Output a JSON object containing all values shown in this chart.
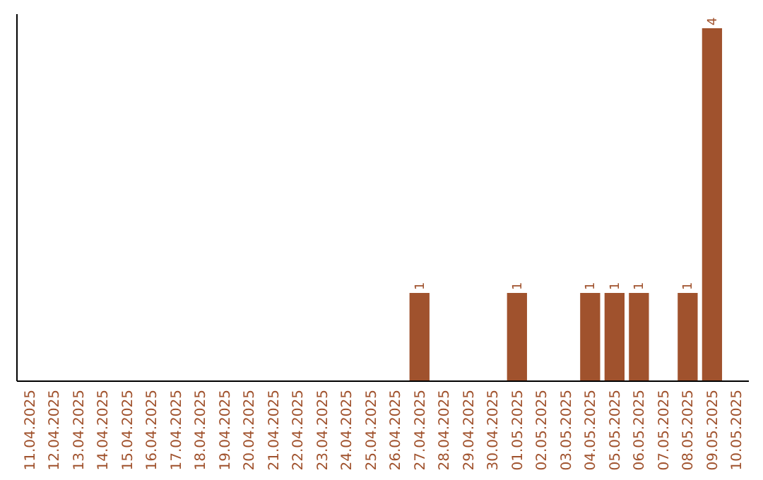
{
  "chart_data": {
    "type": "bar",
    "categories": [
      "11.04.2025",
      "12.04.2025",
      "13.04.2025",
      "14.04.2025",
      "15.04.2025",
      "16.04.2025",
      "17.04.2025",
      "18.04.2025",
      "19.04.2025",
      "20.04.2025",
      "21.04.2025",
      "22.04.2025",
      "23.04.2025",
      "24.04.2025",
      "25.04.2025",
      "26.04.2025",
      "27.04.2025",
      "28.04.2025",
      "29.04.2025",
      "30.04.2025",
      "01.05.2025",
      "02.05.2025",
      "03.05.2025",
      "04.05.2025",
      "05.05.2025",
      "06.05.2025",
      "07.05.2025",
      "08.05.2025",
      "09.05.2025",
      "10.05.2025"
    ],
    "values": [
      null,
      null,
      null,
      null,
      null,
      null,
      null,
      null,
      null,
      null,
      null,
      null,
      null,
      null,
      null,
      null,
      1,
      null,
      null,
      null,
      1,
      null,
      null,
      1,
      1,
      1,
      null,
      1,
      4,
      null
    ],
    "value_labels": [
      null,
      null,
      null,
      null,
      null,
      null,
      null,
      null,
      null,
      null,
      null,
      null,
      null,
      null,
      null,
      null,
      "1",
      null,
      null,
      null,
      "1",
      null,
      null,
      "1",
      "1",
      "1",
      null,
      "1",
      "4",
      null
    ],
    "color": "#a0522d"
  }
}
